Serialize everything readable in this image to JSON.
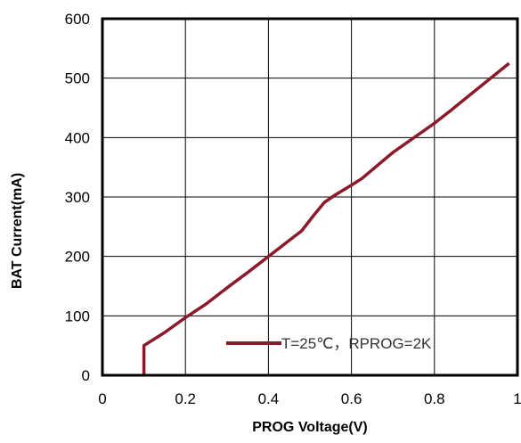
{
  "chart_data": {
    "type": "line",
    "title": "",
    "xlabel": "PROG Voltage(V)",
    "ylabel": "BAT Current(mA)",
    "xlim": [
      0,
      1
    ],
    "ylim": [
      0,
      600
    ],
    "x_ticks": [
      "0",
      "0.2",
      "0.4",
      "0.6",
      "0.8",
      "1"
    ],
    "y_ticks": [
      "0",
      "100",
      "200",
      "300",
      "400",
      "500",
      "600"
    ],
    "grid": true,
    "legend_position": "bottom-right",
    "series": [
      {
        "name": "T=25℃，RPROG=2K",
        "color": "#8B1A2B",
        "points": [
          [
            0.1,
            0
          ],
          [
            0.1,
            50
          ],
          [
            0.15,
            72
          ],
          [
            0.2,
            97
          ],
          [
            0.25,
            120
          ],
          [
            0.3,
            147
          ],
          [
            0.35,
            173
          ],
          [
            0.4,
            200
          ],
          [
            0.45,
            227
          ],
          [
            0.48,
            243
          ],
          [
            0.51,
            270
          ],
          [
            0.535,
            291
          ],
          [
            0.56,
            303
          ],
          [
            0.6,
            320
          ],
          [
            0.625,
            331
          ],
          [
            0.7,
            375
          ],
          [
            0.8,
            424
          ],
          [
            0.84,
            446
          ],
          [
            0.9,
            480
          ],
          [
            0.98,
            525
          ]
        ]
      }
    ]
  }
}
